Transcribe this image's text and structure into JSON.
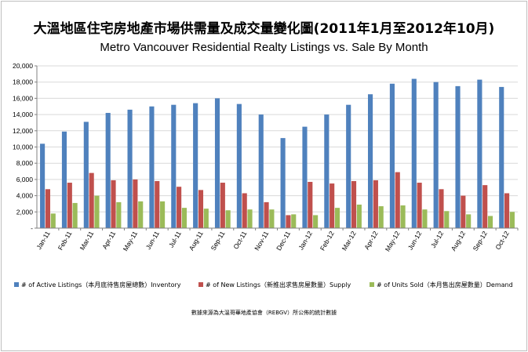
{
  "colors": {
    "inventory": "#4f81bd",
    "supply": "#c0504d",
    "demand": "#9bbb59",
    "grid": "#d9d9d9",
    "axis": "#808080"
  },
  "chart_data": {
    "type": "bar",
    "title": "大溫地區住宅房地產市場供需量及成交量變化圖(2011年1月至2012年10月)",
    "subtitle": "Metro Vancouver Residential Realty Listings vs. Sale By Month",
    "xlabel": "",
    "ylabel": "",
    "ylim": [
      0,
      20000
    ],
    "yticks": [
      "-",
      "2,000",
      "4,000",
      "6,000",
      "8,000",
      "10,000",
      "12,000",
      "14,000",
      "16,000",
      "18,000",
      "20,000"
    ],
    "grid": true,
    "legend_position": "bottom",
    "categories": [
      "Jan-11",
      "Feb-11",
      "Mar-11",
      "Apr-11",
      "May-11",
      "Jun-11",
      "Jul-11",
      "Aug-11",
      "Sep-11",
      "Oct-11",
      "Nov-11",
      "Dec-11",
      "Jan-12",
      "Feb-12",
      "Mar-12",
      "Apr-12",
      "May-12",
      "Jun-12",
      "Jul-12",
      "Aug-12",
      "Sep-12",
      "Oct-12"
    ],
    "series": [
      {
        "name": "# of Active Listings（本月底待售房屋總數）Inventory",
        "values": [
          10400,
          11900,
          13100,
          14200,
          14600,
          15000,
          15200,
          15400,
          16000,
          15300,
          14000,
          11100,
          12500,
          14000,
          15200,
          16500,
          17800,
          18400,
          18000,
          17500,
          18300,
          17400
        ]
      },
      {
        "name": "# of New Listings（新推出求售房屋數量）Supply",
        "values": [
          4800,
          5600,
          6800,
          5900,
          6000,
          5800,
          5100,
          4700,
          5600,
          4300,
          3200,
          1600,
          5700,
          5500,
          5800,
          5900,
          6900,
          5600,
          4800,
          4000,
          5300,
          4300
        ]
      },
      {
        "name": "# of Units Sold（本月售出房屋數量）Demand",
        "values": [
          1800,
          3100,
          4000,
          3200,
          3300,
          3300,
          2500,
          2400,
          2200,
          2300,
          2300,
          1700,
          1600,
          2500,
          2900,
          2700,
          2800,
          2300,
          2100,
          1700,
          1500,
          2000
        ]
      }
    ]
  },
  "footer": {
    "source": "數據來源為大溫哥華地產協會（REBGV）所公佈的統計數據"
  }
}
